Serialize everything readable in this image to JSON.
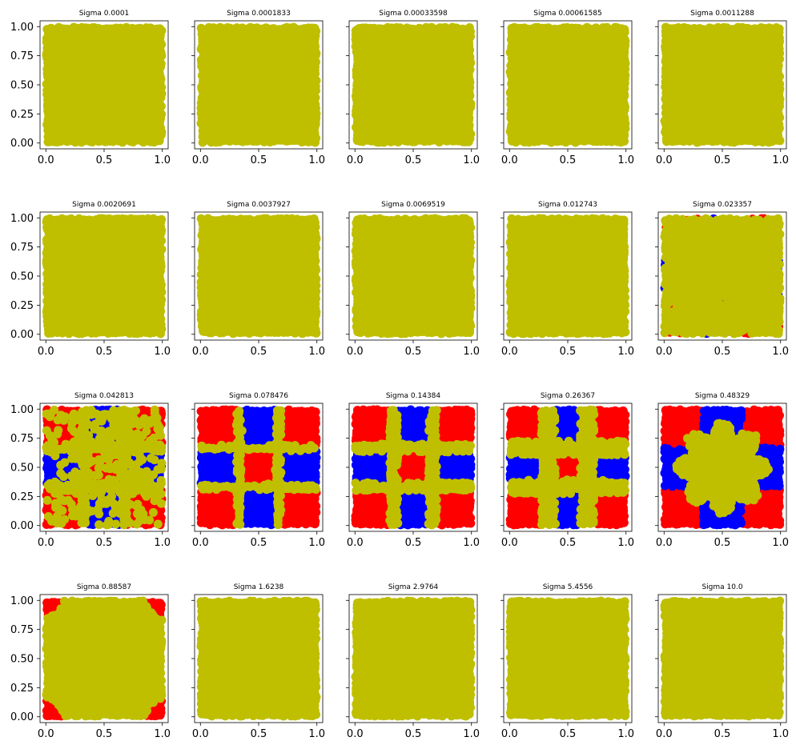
{
  "colors": {
    "class_a": "#ff0000",
    "class_b": "#0000ff",
    "undecided": "#bfbf00"
  },
  "chart_data": [
    {
      "type": "scatter",
      "title": "Sigma 0.0001",
      "xlim": [
        -0.05,
        1.05
      ],
      "ylim": [
        -0.05,
        1.05
      ],
      "xticks": [
        "0.0",
        "0.5",
        "1.0"
      ],
      "yticks": [
        "0.00",
        "0.25",
        "0.50",
        "0.75",
        "1.00"
      ],
      "pattern": "uniform",
      "note": ""
    },
    {
      "type": "scatter",
      "title": "Sigma 0.0001833",
      "xlim": [
        -0.05,
        1.05
      ],
      "ylim": [
        -0.05,
        1.05
      ],
      "xticks": [
        "0.0",
        "0.5",
        "1.0"
      ],
      "yticks": [],
      "pattern": "uniform"
    },
    {
      "type": "scatter",
      "title": "Sigma 0.00033598",
      "xlim": [
        -0.05,
        1.05
      ],
      "ylim": [
        -0.05,
        1.05
      ],
      "xticks": [
        "0.0",
        "0.5",
        "1.0"
      ],
      "yticks": [],
      "pattern": "uniform"
    },
    {
      "type": "scatter",
      "title": "Sigma 0.00061585",
      "xlim": [
        -0.05,
        1.05
      ],
      "ylim": [
        -0.05,
        1.05
      ],
      "xticks": [
        "0.0",
        "0.5",
        "1.0"
      ],
      "yticks": [],
      "pattern": "uniform"
    },
    {
      "type": "scatter",
      "title": "Sigma 0.0011288",
      "xlim": [
        -0.05,
        1.05
      ],
      "ylim": [
        -0.05,
        1.05
      ],
      "xticks": [
        "0.0",
        "0.5",
        "1.0"
      ],
      "yticks": [],
      "pattern": "uniform"
    },
    {
      "type": "scatter",
      "title": "Sigma 0.0020691",
      "xlim": [
        -0.05,
        1.05
      ],
      "ylim": [
        -0.05,
        1.05
      ],
      "xticks": [
        "0.0",
        "0.5",
        "1.0"
      ],
      "yticks": [
        "0.00",
        "0.25",
        "0.50",
        "0.75",
        "1.00"
      ],
      "pattern": "uniform"
    },
    {
      "type": "scatter",
      "title": "Sigma 0.0037927",
      "xlim": [
        -0.05,
        1.05
      ],
      "ylim": [
        -0.05,
        1.05
      ],
      "xticks": [
        "0.0",
        "0.5",
        "1.0"
      ],
      "yticks": [],
      "pattern": "uniform"
    },
    {
      "type": "scatter",
      "title": "Sigma 0.0069519",
      "xlim": [
        -0.05,
        1.05
      ],
      "ylim": [
        -0.05,
        1.05
      ],
      "xticks": [
        "0.0",
        "0.5",
        "1.0"
      ],
      "yticks": [],
      "pattern": "uniform"
    },
    {
      "type": "scatter",
      "title": "Sigma 0.012743",
      "xlim": [
        -0.05,
        1.05
      ],
      "ylim": [
        -0.05,
        1.05
      ],
      "xticks": [
        "0.0",
        "0.5",
        "1.0"
      ],
      "yticks": [],
      "pattern": "uniform"
    },
    {
      "type": "scatter",
      "title": "Sigma 0.023357",
      "xlim": [
        -0.05,
        1.05
      ],
      "ylim": [
        -0.05,
        1.05
      ],
      "xticks": [
        "0.0",
        "0.5",
        "1.0"
      ],
      "yticks": [],
      "pattern": "sparse_checker"
    },
    {
      "type": "scatter",
      "title": "Sigma 0.042813",
      "xlim": [
        -0.05,
        1.05
      ],
      "ylim": [
        -0.05,
        1.05
      ],
      "xticks": [
        "0.0",
        "0.5",
        "1.0"
      ],
      "yticks": [
        "0.00",
        "0.25",
        "0.50",
        "0.75",
        "1.00"
      ],
      "pattern": "noisy_checker"
    },
    {
      "type": "scatter",
      "title": "Sigma 0.078476",
      "xlim": [
        -0.05,
        1.05
      ],
      "ylim": [
        -0.05,
        1.05
      ],
      "xticks": [
        "0.0",
        "0.5",
        "1.0"
      ],
      "yticks": [],
      "pattern": "checker_thin"
    },
    {
      "type": "scatter",
      "title": "Sigma 0.14384",
      "xlim": [
        -0.05,
        1.05
      ],
      "ylim": [
        -0.05,
        1.05
      ],
      "xticks": [
        "0.0",
        "0.5",
        "1.0"
      ],
      "yticks": [],
      "pattern": "checker_cross"
    },
    {
      "type": "scatter",
      "title": "Sigma 0.26367",
      "xlim": [
        -0.05,
        1.05
      ],
      "ylim": [
        -0.05,
        1.05
      ],
      "xticks": [
        "0.0",
        "0.5",
        "1.0"
      ],
      "yticks": [],
      "pattern": "checker_thick"
    },
    {
      "type": "scatter",
      "title": "Sigma 0.48329",
      "xlim": [
        -0.05,
        1.05
      ],
      "ylim": [
        -0.05,
        1.05
      ],
      "xticks": [
        "0.0",
        "0.5",
        "1.0"
      ],
      "yticks": [],
      "pattern": "star"
    },
    {
      "type": "scatter",
      "title": "Sigma 0.88587",
      "xlim": [
        -0.05,
        1.05
      ],
      "ylim": [
        -0.05,
        1.05
      ],
      "xticks": [
        "0.0",
        "0.5",
        "1.0"
      ],
      "yticks": [
        "0.00",
        "0.25",
        "0.50",
        "0.75",
        "1.00"
      ],
      "pattern": "corners"
    },
    {
      "type": "scatter",
      "title": "Sigma 1.6238",
      "xlim": [
        -0.05,
        1.05
      ],
      "ylim": [
        -0.05,
        1.05
      ],
      "xticks": [
        "0.0",
        "0.5",
        "1.0"
      ],
      "yticks": [],
      "pattern": "uniform"
    },
    {
      "type": "scatter",
      "title": "Sigma 2.9764",
      "xlim": [
        -0.05,
        1.05
      ],
      "ylim": [
        -0.05,
        1.05
      ],
      "xticks": [
        "0.0",
        "0.5",
        "1.0"
      ],
      "yticks": [],
      "pattern": "uniform"
    },
    {
      "type": "scatter",
      "title": "Sigma 5.4556",
      "xlim": [
        -0.05,
        1.05
      ],
      "ylim": [
        -0.05,
        1.05
      ],
      "xticks": [
        "0.0",
        "0.5",
        "1.0"
      ],
      "yticks": [],
      "pattern": "uniform"
    },
    {
      "type": "scatter",
      "title": "Sigma 10.0",
      "xlim": [
        -0.05,
        1.05
      ],
      "ylim": [
        -0.05,
        1.05
      ],
      "xticks": [
        "0.0",
        "0.5",
        "1.0"
      ],
      "yticks": [],
      "pattern": "uniform"
    }
  ]
}
